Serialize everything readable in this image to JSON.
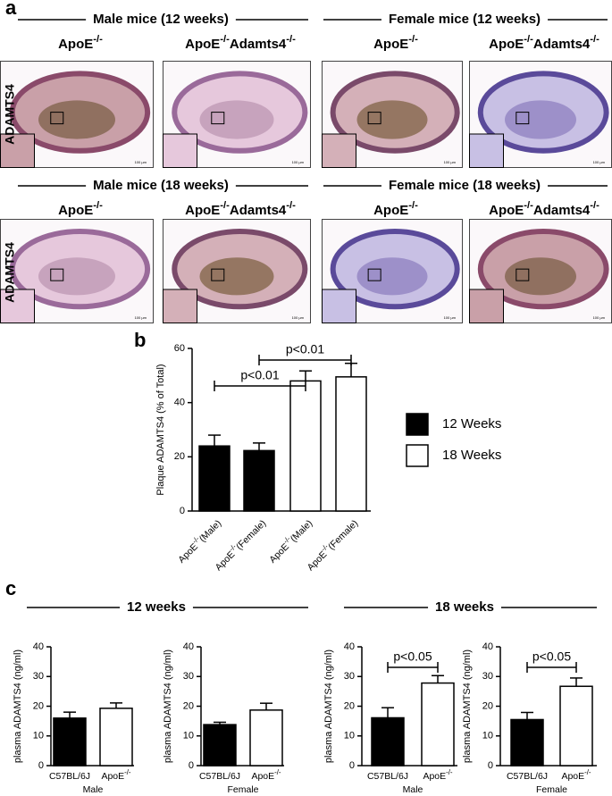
{
  "panel_a": {
    "label": "a",
    "row_label": "ADAMTS4",
    "scale_bar": "100 µm",
    "groups": [
      {
        "title": "Male mice (12 weeks)",
        "genotypes": [
          "ApoE-/-",
          "ApoE-/-Adamts4-/-"
        ]
      },
      {
        "title": "Female mice (12 weeks)",
        "genotypes": [
          "ApoE-/-",
          "ApoE-/-Adamts4-/-"
        ]
      },
      {
        "title": "Male mice (18 weeks)",
        "genotypes": [
          "ApoE-/-",
          "ApoE-/-Adamts4-/-"
        ]
      },
      {
        "title": "Female mice (18 weeks)",
        "genotypes": [
          "ApoE-/-",
          "ApoE-/-Adamts4-/-"
        ]
      }
    ]
  },
  "panel_c": {
    "label": "c",
    "groups": [
      "12 weeks",
      "18 weeks"
    ]
  },
  "chart_data": [
    {
      "type": "bar",
      "panel_label": "b",
      "ylabel": "Plaque ADAMTS4 (% of Total)",
      "categories": [
        "ApoE-/-(Male)",
        "ApoE-/-(Female)",
        "ApoE-/-(Male)",
        "ApoE-/-(Female)"
      ],
      "series": [
        {
          "name": "12 Weeks",
          "color": "#000000",
          "values": [
            24,
            22.3,
            null,
            null
          ],
          "errors": [
            4,
            2.8,
            null,
            null
          ]
        },
        {
          "name": "18 Weeks",
          "color": "#ffffff",
          "values": [
            null,
            null,
            48,
            49.5
          ],
          "errors": [
            null,
            null,
            3.7,
            5
          ]
        }
      ],
      "ylim": [
        0,
        60
      ],
      "yticks": [
        0,
        20,
        40,
        60
      ],
      "legend": "right",
      "annotations": [
        "p<0.01",
        "p<0.01"
      ]
    },
    {
      "type": "bar",
      "ylabel": "plasma ADAMTS4 (ng/ml)",
      "xlabel": "Male",
      "categories": [
        "C57BL/6J",
        "ApoE-/-"
      ],
      "colors": [
        "#000000",
        "#ffffff"
      ],
      "series": [
        {
          "values": [
            16,
            19.3
          ],
          "errors": [
            2,
            1.8
          ]
        }
      ],
      "ylim": [
        0,
        40
      ],
      "yticks": [
        0,
        10,
        20,
        30,
        40
      ],
      "annotations": []
    },
    {
      "type": "bar",
      "ylabel": "plasma ADAMTS4 (ng/ml)",
      "xlabel": "Female",
      "categories": [
        "C57BL/6J",
        "ApoE-/-"
      ],
      "colors": [
        "#000000",
        "#ffffff"
      ],
      "series": [
        {
          "values": [
            13.8,
            18.7
          ],
          "errors": [
            0.8,
            2.3
          ]
        }
      ],
      "ylim": [
        0,
        40
      ],
      "yticks": [
        0,
        10,
        20,
        30,
        40
      ],
      "annotations": []
    },
    {
      "type": "bar",
      "ylabel": "plasma ADAMTS4 (ng/ml)",
      "xlabel": "Male",
      "categories": [
        "C57BL/6J",
        "ApoE-/-"
      ],
      "colors": [
        "#000000",
        "#ffffff"
      ],
      "series": [
        {
          "values": [
            16.1,
            27.8
          ],
          "errors": [
            3.4,
            2.5
          ]
        }
      ],
      "ylim": [
        0,
        40
      ],
      "yticks": [
        0,
        10,
        20,
        30,
        40
      ],
      "annotations": [
        "p<0.05"
      ]
    },
    {
      "type": "bar",
      "ylabel": "plasma ADAMTS4 (ng/ml)",
      "xlabel": "Female",
      "categories": [
        "C57BL/6J",
        "ApoE-/-"
      ],
      "colors": [
        "#000000",
        "#ffffff"
      ],
      "series": [
        {
          "values": [
            15.5,
            26.7
          ],
          "errors": [
            2.4,
            2.8
          ]
        }
      ],
      "ylim": [
        0,
        40
      ],
      "yticks": [
        0,
        10,
        20,
        30,
        40
      ],
      "annotations": [
        "p<0.05"
      ]
    }
  ]
}
